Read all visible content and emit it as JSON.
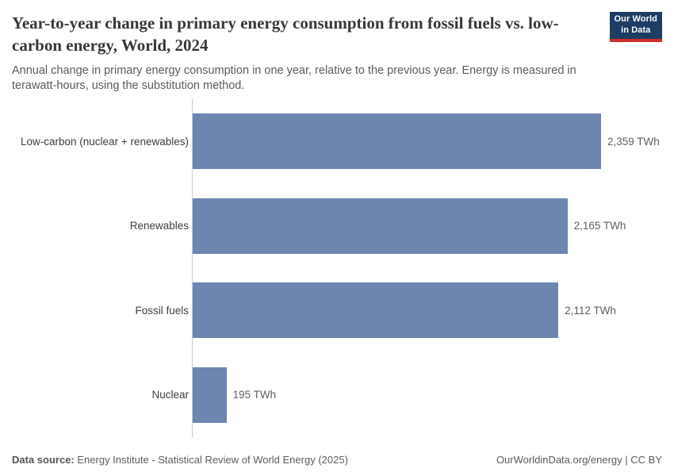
{
  "header": {
    "title": "Year-to-year change in primary energy consumption from fossil fuels vs. low-carbon energy, World, 2024",
    "subtitle": "Annual change in primary energy consumption in one year, relative to the previous year. Energy is measured in terawatt-hours, using the substitution method.",
    "logo": {
      "line1": "Our World",
      "line2": "in Data",
      "bg_color": "#1d3d63",
      "accent_color": "#cf2f28"
    }
  },
  "chart_data": {
    "type": "bar",
    "orientation": "horizontal",
    "title": "Year-to-year change in primary energy consumption from fossil fuels vs. low-carbon energy, World, 2024",
    "categories": [
      "Low-carbon (nuclear + renewables)",
      "Renewables",
      "Fossil fuels",
      "Nuclear"
    ],
    "values": [
      2359,
      2165,
      2112,
      195
    ],
    "value_labels": [
      "2,359 TWh",
      "2,165 TWh",
      "2,112 TWh",
      "195 TWh"
    ],
    "unit": "TWh",
    "xlim": [
      0,
      2359
    ],
    "grid": false,
    "legend": "none",
    "bar_color": "#6c86b0"
  },
  "footer": {
    "data_source_label": "Data source:",
    "data_source": "Energy Institute - Statistical Review of World Energy (2025)",
    "credit": "OurWorldinData.org/energy | CC BY"
  }
}
